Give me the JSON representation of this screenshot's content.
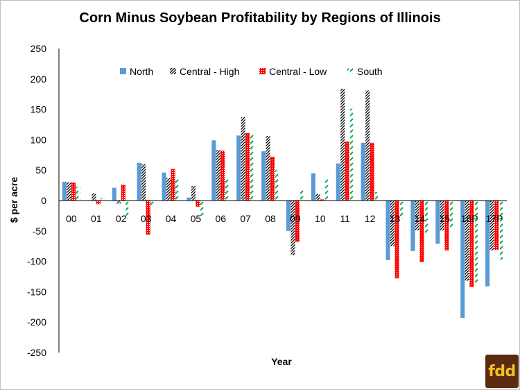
{
  "chart_data": {
    "type": "bar",
    "title": "Corn Minus Soybean Profitability by Regions of Illinois",
    "xlabel": "Year",
    "ylabel": "$ per acre",
    "ylim": [
      -250,
      250
    ],
    "yticks": [
      250,
      200,
      150,
      100,
      50,
      0,
      -50,
      -100,
      -150,
      -200,
      -250
    ],
    "grid": false,
    "legend_position": "top",
    "categories": [
      "00",
      "01",
      "02",
      "03",
      "04",
      "05",
      "06",
      "07",
      "08",
      "09",
      "10",
      "11",
      "12",
      "13",
      "14",
      "15",
      "16P",
      "17P"
    ],
    "series": [
      {
        "name": "North",
        "color": "#5b9bd5",
        "pattern": "solid",
        "values": [
          31,
          0,
          21,
          62,
          46,
          5,
          99,
          107,
          81,
          -50,
          45,
          61,
          95,
          -98,
          -83,
          -71,
          -193,
          -141
        ]
      },
      {
        "name": "Central - High",
        "color": "#000000",
        "pattern": "diagonal-black",
        "values": [
          30,
          12,
          -5,
          60,
          37,
          24,
          83,
          137,
          106,
          -90,
          11,
          184,
          181,
          -75,
          -49,
          -49,
          -132,
          -82
        ]
      },
      {
        "name": "Central - Low",
        "color": "#ff0000",
        "pattern": "dotted-red",
        "values": [
          30,
          -6,
          26,
          -56,
          52,
          -10,
          82,
          111,
          72,
          -68,
          2,
          97,
          95,
          -128,
          -101,
          -82,
          -142,
          -81
        ]
      },
      {
        "name": "South",
        "color": "#00b050",
        "pattern": "dashed-green",
        "values": [
          23,
          4,
          -30,
          -10,
          36,
          -25,
          35,
          111,
          50,
          20,
          36,
          151,
          14,
          -30,
          -55,
          -45,
          -135,
          -97
        ]
      }
    ]
  },
  "logo": {
    "text": "fdd"
  }
}
